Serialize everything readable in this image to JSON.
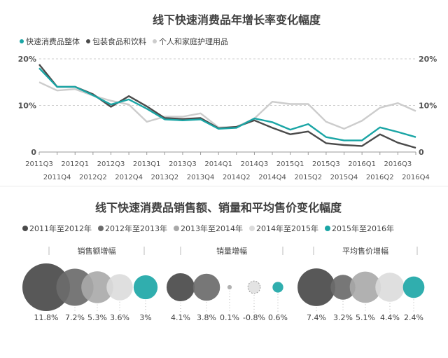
{
  "colors": {
    "teal": "#1aa5a5",
    "dark": "#4a4a4a",
    "mid": "#8c8c8c",
    "light": "#cccccc",
    "lighter": "#e6e6e6",
    "text": "#404040",
    "grid": "#cfcfcf"
  },
  "chart_data": [
    {
      "type": "line",
      "title": "线下快速消费品年增长率变化幅度",
      "legend_position": "top-left",
      "y_ticks": [
        "20%",
        "10%",
        "0"
      ],
      "ylim": [
        0,
        20
      ],
      "x_labels_top": [
        "2011Q3",
        "2012Q1",
        "2012Q3",
        "2013Q1",
        "2013Q3",
        "2014Q1",
        "2014Q3",
        "2015Q1",
        "2015Q3",
        "2016Q1",
        "2016Q3"
      ],
      "x_labels_bottom": [
        "2011Q4",
        "2012Q2",
        "2012Q4",
        "2013Q2",
        "2013Q4",
        "2014Q2",
        "2014Q4",
        "2015Q2",
        "2015Q4",
        "2016Q2",
        "2016Q4"
      ],
      "series": [
        {
          "name": "快速消费品整体",
          "color": "#1aa5a5",
          "values": [
            18.0,
            14.0,
            14.0,
            12.2,
            10.2,
            11.3,
            9.3,
            7.0,
            6.8,
            7.0,
            5.0,
            5.2,
            7.2,
            6.4,
            4.8,
            6.0,
            3.2,
            2.5,
            2.5,
            5.3,
            4.3,
            3.2
          ]
        },
        {
          "name": "包装食品和饮料",
          "color": "#4a4a4a",
          "values": [
            18.8,
            14.0,
            14.0,
            12.4,
            9.7,
            12.0,
            9.8,
            7.3,
            7.1,
            7.3,
            5.1,
            5.4,
            6.8,
            5.2,
            3.8,
            4.4,
            1.9,
            1.5,
            1.3,
            3.8,
            2.0,
            0.9
          ]
        },
        {
          "name": "个人和家庭护理用品",
          "color": "#cccccc",
          "values": [
            15.0,
            13.2,
            13.5,
            12.1,
            11.0,
            10.2,
            6.5,
            7.6,
            7.6,
            8.3,
            5.3,
            5.4,
            7.2,
            10.8,
            10.3,
            10.3,
            6.5,
            5.0,
            6.7,
            9.5,
            10.5,
            8.8
          ]
        }
      ]
    },
    {
      "type": "bubble",
      "title": "线下快速消费品销售额、销量和平均售价变化幅度",
      "legend_position": "top-left",
      "series": [
        {
          "name": "2011年至2012年",
          "color": "#4a4a4a"
        },
        {
          "name": "2012年至2013年",
          "color": "#6b6b6b"
        },
        {
          "name": "2013年至2014年",
          "color": "#a8a8a8"
        },
        {
          "name": "2014年至2015年",
          "color": "#dcdcdc"
        },
        {
          "name": "2015年至2016年",
          "color": "#1aa5a5"
        }
      ],
      "groups": [
        {
          "label": "销售额增幅",
          "values": [
            11.8,
            7.2,
            5.3,
            3.6,
            3
          ],
          "value_labels": [
            "11.8%",
            "7.2%",
            "5.3%",
            "3.6%",
            "3%"
          ]
        },
        {
          "label": "销量增幅",
          "values": [
            4.1,
            3.8,
            0.1,
            -0.8,
            0.6
          ],
          "value_labels": [
            "4.1%",
            "3.8%",
            "0.1%",
            "-0.8%",
            "0.6%"
          ]
        },
        {
          "label": "平均售价增幅",
          "values": [
            7.4,
            3.2,
            5.1,
            4.4,
            2.4
          ],
          "value_labels": [
            "7.4%",
            "3.2%",
            "5.1%",
            "4.4%",
            "2.4%"
          ]
        }
      ]
    }
  ]
}
